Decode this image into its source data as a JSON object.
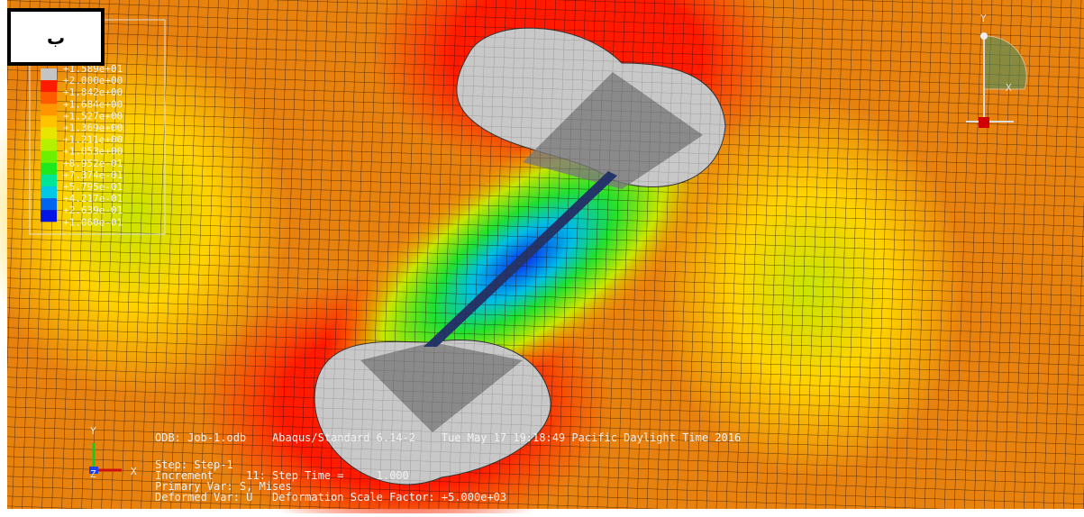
{
  "label": "ب",
  "legend": {
    "values": [
      "+1.589e+01",
      "+2.000e+00",
      "+1.842e+00",
      "+1.684e+00",
      "+1.527e+00",
      "+1.369e+00",
      "+1.211e+00",
      "+1.053e+00",
      "+8.952e-01",
      "+7.374e-01",
      "+5.795e-01",
      "+4.217e-01",
      "+2.639e-01",
      "+1.060e-01"
    ],
    "colors": [
      "#c4c4c4",
      "#ff1a00",
      "#ff5a00",
      "#ff9600",
      "#ffc300",
      "#e8e600",
      "#b4f000",
      "#6cf000",
      "#1ee81e",
      "#00e696",
      "#00c8e6",
      "#0064f0",
      "#0014e6"
    ]
  },
  "info": [
    "ODB: Job-1.odb    Abaqus/Standard 6.14-2    Tue May 17 19:18:49 Pacific Daylight Time 2016",
    "Step: Step-1",
    "Increment     11: Step Time =     1.000",
    "Primary Var: S, Mises",
    "Deformed Var: U   Deformation Scale Factor: +5.000e+03"
  ],
  "triad": {
    "x": "X",
    "y": "Y",
    "z": "Z"
  }
}
